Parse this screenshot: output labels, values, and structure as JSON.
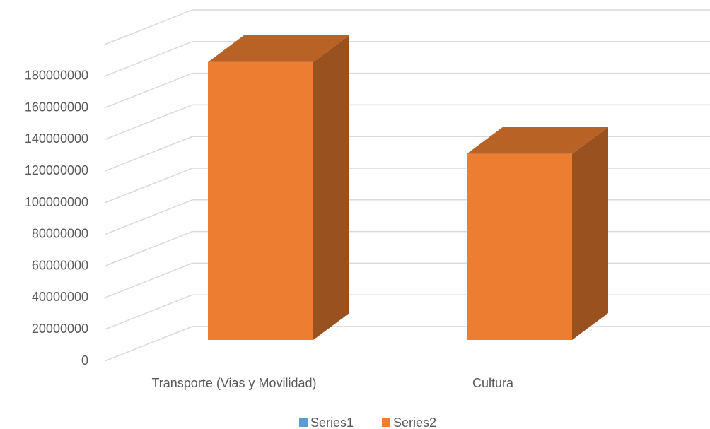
{
  "chart_data": {
    "type": "bar3d",
    "categories": [
      "Transporte (Vias y Movilidad)",
      "Cultura"
    ],
    "series": [
      {
        "name": "Series1",
        "color": "#5b9bd5",
        "values": [
          null,
          null
        ]
      },
      {
        "name": "Series2",
        "color": "#ed7d31",
        "values": [
          175500000,
          117500000
        ]
      }
    ],
    "ylim": [
      0,
      200000000
    ],
    "yticks": [
      0,
      20000000,
      40000000,
      60000000,
      80000000,
      100000000,
      120000000,
      140000000,
      160000000,
      180000000
    ],
    "grid": true,
    "legend": "bottom"
  }
}
